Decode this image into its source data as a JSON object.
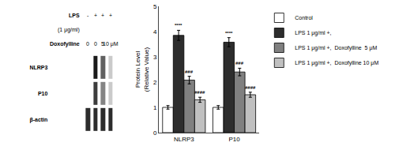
{
  "chart_data": [
    {
      "type": "heatmap",
      "categories": [
        "NLRP3",
        "P10",
        "β-actin"
      ],
      "cells": [
        [
          0.25,
          0.9,
          0.7,
          0.4
        ],
        [
          0.25,
          0.8,
          0.6,
          0.4
        ],
        [
          0.85,
          0.85,
          0.85,
          0.85
        ]
      ],
      "annotations": [
        {
          "text": "LPS",
          "lanes": [
            "-",
            "+",
            "+",
            "+"
          ]
        },
        {
          "text": "(1 μg/ml)"
        },
        {
          "text": "Doxofylline",
          "lanes": [
            "0",
            "0",
            "5",
            "10 μM"
          ]
        }
      ],
      "tick_labels": "y",
      "grid": false
    },
    {
      "type": "bar",
      "categories": [
        "NLRP3",
        "P10"
      ],
      "series": [
        {
          "name": "Control",
          "color": "#ffffff",
          "values": [
            1.0,
            1.0
          ],
          "errors": [
            0.07,
            0.07
          ]
        },
        {
          "name": "LPS 1 μg/ml +,",
          "color": "#2d2d2d",
          "values": [
            3.85,
            3.58
          ],
          "errors": [
            0.2,
            0.18
          ]
        },
        {
          "name": "LPS 1 μg/ml +,  Doxofylline  5 μM",
          "color": "#808080",
          "values": [
            2.08,
            2.4
          ],
          "errors": [
            0.15,
            0.15
          ]
        },
        {
          "name": "LPS 1 μg/ml +,  Doxofylline 10 μM",
          "color": "#c0c0c0",
          "values": [
            1.3,
            1.5
          ],
          "errors": [
            0.1,
            0.1
          ]
        }
      ],
      "annotations": [
        {
          "text": "****",
          "series": "LPS 1 μg/ml +,"
        },
        {
          "text": "###",
          "series": "LPS 1 μg/ml +,  Doxofylline  5 μM"
        },
        {
          "text": "####",
          "series": "LPS 1 μg/ml +,  Doxofylline 10 μM"
        }
      ],
      "ylabel": "Protein Level\n(Relative Value)",
      "ylim": [
        0,
        5
      ],
      "yticks": [
        0,
        1,
        2,
        3,
        4,
        5
      ],
      "grid": false,
      "legend": "right"
    }
  ]
}
